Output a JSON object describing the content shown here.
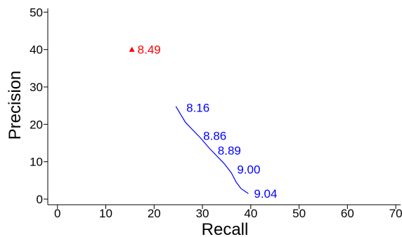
{
  "chart_data": {
    "type": "scatter",
    "xlabel": "Recall",
    "ylabel": "Precision",
    "xlim": [
      -2,
      71
    ],
    "ylim": [
      -1.5,
      51
    ],
    "xticks": [
      0,
      10,
      20,
      30,
      40,
      50,
      60,
      70
    ],
    "yticks": [
      0,
      10,
      20,
      30,
      40,
      50
    ],
    "grid": false,
    "series": [
      {
        "color": "#ff0000",
        "marker": "triangle",
        "points": [
          {
            "x": 15.4,
            "y": 40.0,
            "label": "8.49"
          }
        ]
      },
      {
        "color": "#0000ff",
        "marker": "line",
        "line": [
          [
            24.5,
            24.8
          ],
          [
            26.5,
            20.5
          ],
          [
            29.5,
            16.5
          ],
          [
            31.5,
            13.5
          ],
          [
            34.5,
            9.5
          ],
          [
            36,
            7
          ],
          [
            37,
            4.5
          ],
          [
            38,
            2.8
          ],
          [
            39.5,
            1.5
          ]
        ],
        "points": [
          {
            "x": 25.5,
            "y": 24.5,
            "label": "8.16"
          },
          {
            "x": 29.0,
            "y": 17.0,
            "label": "8.86"
          },
          {
            "x": 32.0,
            "y": 13.0,
            "label": "8.89"
          },
          {
            "x": 36.0,
            "y": 8.0,
            "label": "9.00"
          },
          {
            "x": 39.5,
            "y": 1.5,
            "label": "9.04"
          }
        ]
      }
    ]
  }
}
